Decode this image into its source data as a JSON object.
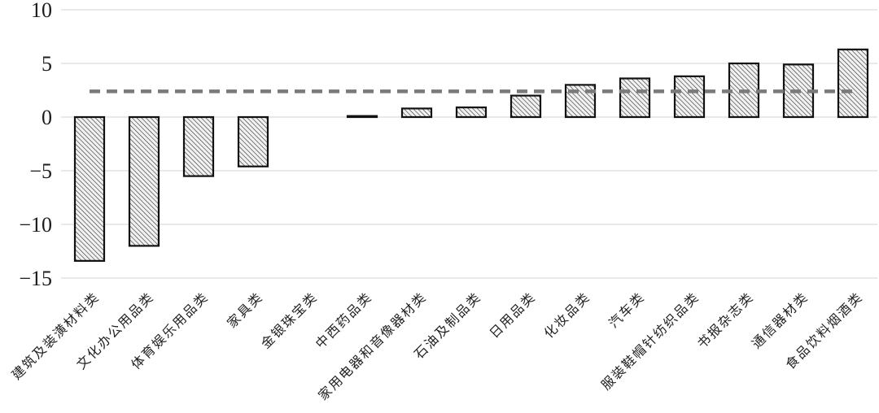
{
  "chart_data": {
    "type": "bar",
    "title": "",
    "xlabel": "",
    "ylabel": "",
    "categories": [
      "建筑及装潢材料类",
      "文化办公用品类",
      "体育娱乐用品类",
      "家具类",
      "金银珠宝类",
      "中西药品类",
      "家用电器和音像器材类",
      "石油及制品类",
      "日用品类",
      "化妆品类",
      "汽车类",
      "服装鞋帽针纺织品类",
      "书报杂志类",
      "通信器材类",
      "食品饮料烟酒类"
    ],
    "values": [
      -13.4,
      -12.0,
      -5.5,
      -4.6,
      0.0,
      0.1,
      0.8,
      0.9,
      2.0,
      3.0,
      3.6,
      3.8,
      5.0,
      4.9,
      6.3
    ],
    "reference_line": {
      "value": 2.4,
      "style": "dashed",
      "color": "#7a7a7a"
    },
    "ylim": [
      -15,
      10
    ],
    "yticks": [
      10,
      5,
      0,
      -5,
      -10,
      -15
    ],
    "ytick_labels": [
      "10",
      "5",
      "0",
      "−5",
      "−10",
      "−15"
    ],
    "grid": true,
    "legend": "none",
    "bar_style": {
      "fill_color": "#f1f1f1",
      "hatch": "backslash-diagonal",
      "hatch_color": "#2e2e2e",
      "border_color": "#111111",
      "grid_color": "#dcdcdc"
    }
  }
}
